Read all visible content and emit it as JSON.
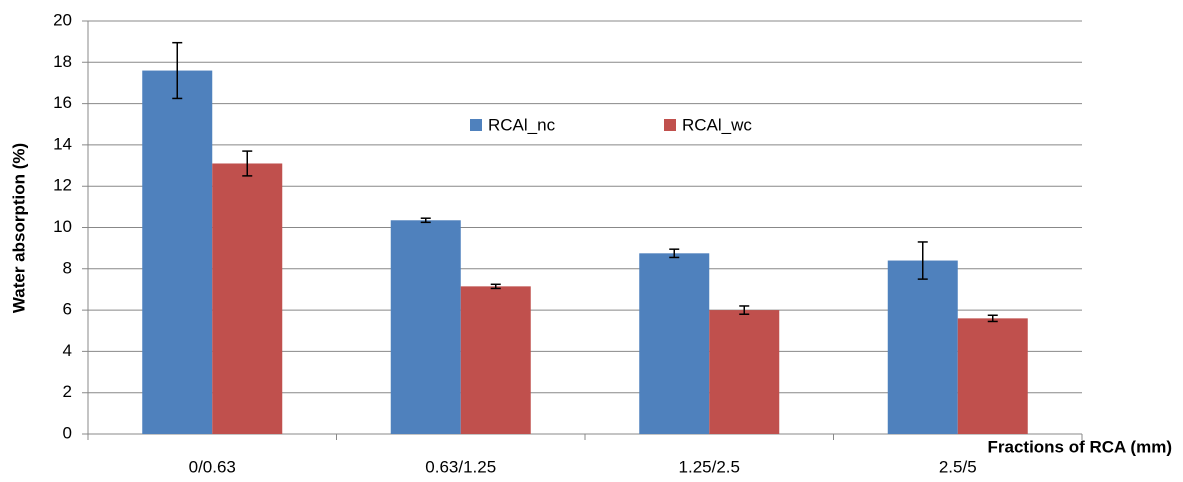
{
  "chart_data": {
    "type": "bar",
    "x_label": "Fractions of RCA (mm)",
    "y_label": "Water absorption (%)",
    "categories": [
      "0/0.63",
      "0.63/1.25",
      "1.25/2.5",
      "2.5/5"
    ],
    "series": [
      {
        "name": "RCAl_nc",
        "color": "#4f81bd",
        "values": [
          17.6,
          10.35,
          8.75,
          8.4
        ],
        "errors": [
          1.35,
          0.1,
          0.2,
          0.9
        ]
      },
      {
        "name": "RCAl_wc",
        "color": "#c0504d",
        "values": [
          13.1,
          7.15,
          6.0,
          5.6
        ],
        "errors": [
          0.6,
          0.1,
          0.2,
          0.15
        ]
      }
    ],
    "ylim": [
      0,
      20
    ],
    "yticks": [
      0,
      2,
      4,
      6,
      8,
      10,
      12,
      14,
      16,
      18,
      20
    ],
    "grid": true
  }
}
